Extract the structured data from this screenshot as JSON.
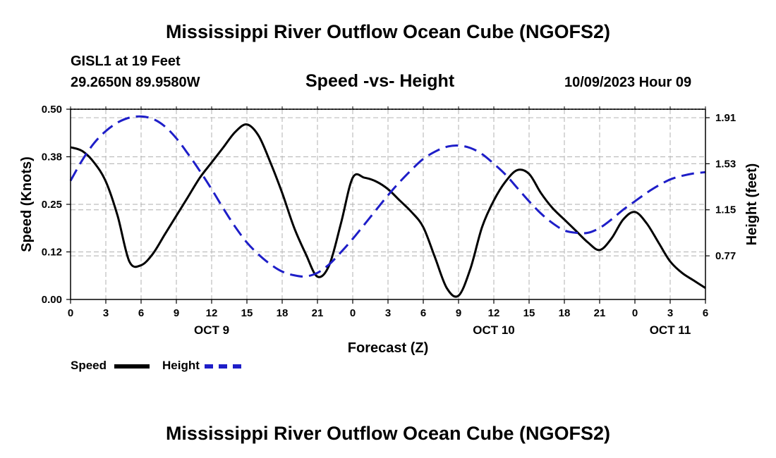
{
  "page": {
    "title_top": "Mississippi River Outflow Ocean Cube (NGOFS2)",
    "title_bottom": "Mississippi River Outflow Ocean Cube (NGOFS2)",
    "station": "GISL1 at 19 Feet",
    "location": "29.2650N  89.9580W",
    "datetime": "10/09/2023 Hour 09"
  },
  "legend": {
    "speed_label": "Speed",
    "height_label": "Height"
  },
  "colors": {
    "speed": "#000000",
    "height": "#1e1ec8",
    "grid": "#bdbdbd",
    "background": "#ffffff"
  },
  "chart_data": {
    "type": "line",
    "title": "Speed -vs- Height",
    "xlabel": "Forecast (Z)",
    "ylabel": "Speed (Knots)",
    "y2label": "Height (feet)",
    "xlim": [
      0,
      54
    ],
    "ylim": [
      0,
      0.5
    ],
    "y2lim": [
      0.41,
      1.98
    ],
    "x_ticks": [
      0,
      3,
      6,
      9,
      12,
      15,
      18,
      21,
      24,
      27,
      30,
      33,
      36,
      39,
      42,
      45,
      48,
      51,
      54
    ],
    "x_tick_labels": [
      "0",
      "3",
      "6",
      "9",
      "12",
      "15",
      "18",
      "21",
      "0",
      "3",
      "6",
      "9",
      "12",
      "15",
      "18",
      "21",
      "0",
      "3",
      "6"
    ],
    "y_ticks": [
      0,
      0.125,
      0.25,
      0.375,
      0.5
    ],
    "y_tick_labels": [
      "0.00",
      "0.12",
      "0.25",
      "0.38",
      "0.50"
    ],
    "y2_ticks": [
      0.77,
      1.15,
      1.53,
      1.91
    ],
    "y2_tick_labels": [
      "0.77",
      "1.15",
      "1.53",
      "1.91"
    ],
    "date_labels": [
      {
        "x": 12,
        "label": "OCT 9"
      },
      {
        "x": 36,
        "label": "OCT 10"
      },
      {
        "x": 51,
        "label": "OCT 11"
      }
    ],
    "grid": true,
    "series": [
      {
        "name": "Speed",
        "axis": "left",
        "style": "solid",
        "x": [
          0,
          1,
          2,
          3,
          4,
          5,
          6,
          7,
          8,
          9,
          10,
          11,
          12,
          13,
          14,
          15,
          16,
          17,
          18,
          19,
          20,
          21,
          22,
          23,
          24,
          25,
          26,
          27,
          28,
          29,
          30,
          31,
          32,
          33,
          34,
          35,
          36,
          37,
          38,
          39,
          40,
          41,
          42,
          43,
          44,
          45,
          46,
          47,
          48,
          49,
          50,
          51,
          52,
          53,
          54
        ],
        "values": [
          0.4,
          0.39,
          0.36,
          0.31,
          0.22,
          0.1,
          0.09,
          0.12,
          0.17,
          0.22,
          0.27,
          0.32,
          0.36,
          0.4,
          0.44,
          0.46,
          0.43,
          0.36,
          0.28,
          0.19,
          0.12,
          0.06,
          0.09,
          0.2,
          0.32,
          0.32,
          0.31,
          0.29,
          0.26,
          0.23,
          0.19,
          0.11,
          0.03,
          0.01,
          0.08,
          0.19,
          0.26,
          0.31,
          0.34,
          0.33,
          0.28,
          0.24,
          0.21,
          0.18,
          0.15,
          0.13,
          0.16,
          0.21,
          0.23,
          0.2,
          0.15,
          0.1,
          0.07,
          0.05,
          0.03
        ]
      },
      {
        "name": "Height",
        "axis": "right",
        "style": "dashed",
        "x": [
          0,
          1,
          2,
          3,
          4,
          5,
          6,
          7,
          8,
          9,
          10,
          11,
          12,
          13,
          14,
          15,
          16,
          17,
          18,
          19,
          20,
          21,
          22,
          23,
          24,
          25,
          26,
          27,
          28,
          29,
          30,
          31,
          32,
          33,
          34,
          35,
          36,
          37,
          38,
          39,
          40,
          41,
          42,
          43,
          44,
          45,
          46,
          47,
          48,
          49,
          50,
          51,
          52,
          53,
          54
        ],
        "values": [
          1.39,
          1.56,
          1.7,
          1.8,
          1.87,
          1.91,
          1.92,
          1.9,
          1.84,
          1.74,
          1.61,
          1.47,
          1.32,
          1.16,
          1.01,
          0.88,
          0.78,
          0.7,
          0.64,
          0.61,
          0.6,
          0.63,
          0.7,
          0.8,
          0.91,
          1.03,
          1.15,
          1.27,
          1.38,
          1.48,
          1.57,
          1.63,
          1.67,
          1.68,
          1.66,
          1.61,
          1.53,
          1.44,
          1.33,
          1.22,
          1.12,
          1.04,
          0.98,
          0.96,
          0.96,
          1.0,
          1.07,
          1.15,
          1.22,
          1.29,
          1.35,
          1.4,
          1.43,
          1.45,
          1.46
        ]
      }
    ]
  }
}
